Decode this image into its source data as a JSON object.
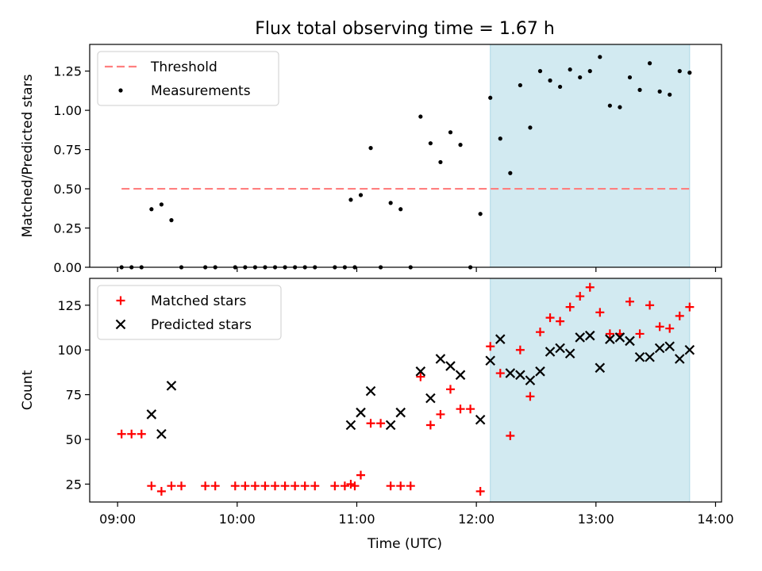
{
  "figure": {
    "title": "Flux total observing time = 1.67 h",
    "xlabel": "Time (UTC)"
  },
  "colors": {
    "threshold": "#ff7f7f",
    "measurement": "#000000",
    "matched": "#ff0000",
    "predicted": "#000000",
    "highlight": "#add8e6"
  },
  "chart_data": [
    {
      "type": "scatter",
      "panel": "top",
      "ylabel": "Matched/Predicted stars",
      "xlim": [
        "08:46",
        "14:03"
      ],
      "ylim": [
        0,
        1.42
      ],
      "yticks": [
        0.0,
        0.25,
        0.5,
        0.75,
        1.0,
        1.25
      ],
      "ytick_labels": [
        "0.00",
        "0.25",
        "0.50",
        "0.75",
        "1.00",
        "1.25"
      ],
      "highlight_span": [
        "12:07",
        "13:47"
      ],
      "threshold": {
        "name": "Threshold",
        "y": 0.5,
        "x_range": [
          "09:02",
          "13:47"
        ],
        "style": "dashed"
      },
      "legend": {
        "position": "top-left",
        "entries": [
          "Threshold",
          "Measurements"
        ]
      },
      "series": [
        {
          "name": "Measurements",
          "marker": "dot",
          "points": [
            [
              "09:02",
              0.0
            ],
            [
              "09:07",
              0.0
            ],
            [
              "09:12",
              0.0
            ],
            [
              "09:17",
              0.37
            ],
            [
              "09:22",
              0.4
            ],
            [
              "09:27",
              0.3
            ],
            [
              "09:32",
              0.0
            ],
            [
              "09:44",
              0.0
            ],
            [
              "09:49",
              0.0
            ],
            [
              "09:59",
              0.0
            ],
            [
              "10:04",
              0.0
            ],
            [
              "10:09",
              0.0
            ],
            [
              "10:14",
              0.0
            ],
            [
              "10:19",
              0.0
            ],
            [
              "10:24",
              0.0
            ],
            [
              "10:29",
              0.0
            ],
            [
              "10:34",
              0.0
            ],
            [
              "10:39",
              0.0
            ],
            [
              "10:49",
              0.0
            ],
            [
              "10:54",
              0.0
            ],
            [
              "10:59",
              0.0
            ],
            [
              "10:57",
              0.43
            ],
            [
              "11:02",
              0.46
            ],
            [
              "11:07",
              0.76
            ],
            [
              "11:12",
              0.0
            ],
            [
              "11:17",
              0.41
            ],
            [
              "11:22",
              0.37
            ],
            [
              "11:27",
              0.0
            ],
            [
              "11:32",
              0.96
            ],
            [
              "11:37",
              0.79
            ],
            [
              "11:42",
              0.67
            ],
            [
              "11:47",
              0.86
            ],
            [
              "11:52",
              0.78
            ],
            [
              "11:57",
              0.0
            ],
            [
              "12:02",
              0.34
            ],
            [
              "12:07",
              1.08
            ],
            [
              "12:12",
              0.82
            ],
            [
              "12:17",
              0.6
            ],
            [
              "12:22",
              1.16
            ],
            [
              "12:27",
              0.89
            ],
            [
              "12:32",
              1.25
            ],
            [
              "12:37",
              1.19
            ],
            [
              "12:42",
              1.15
            ],
            [
              "12:47",
              1.26
            ],
            [
              "12:52",
              1.21
            ],
            [
              "12:57",
              1.25
            ],
            [
              "13:02",
              1.34
            ],
            [
              "13:07",
              1.03
            ],
            [
              "13:12",
              1.02
            ],
            [
              "13:17",
              1.21
            ],
            [
              "13:22",
              1.13
            ],
            [
              "13:27",
              1.3
            ],
            [
              "13:32",
              1.12
            ],
            [
              "13:37",
              1.1
            ],
            [
              "13:42",
              1.25
            ],
            [
              "13:47",
              1.24
            ]
          ]
        }
      ]
    },
    {
      "type": "scatter",
      "panel": "bottom",
      "ylabel": "Count",
      "xlim": [
        "08:46",
        "14:03"
      ],
      "ylim": [
        15,
        140
      ],
      "yticks": [
        25,
        50,
        75,
        100,
        125
      ],
      "ytick_labels": [
        "25",
        "50",
        "75",
        "100",
        "125"
      ],
      "xticks": [
        "09:00",
        "10:00",
        "11:00",
        "12:00",
        "13:00",
        "14:00"
      ],
      "xtick_labels": [
        "09:00",
        "10:00",
        "11:00",
        "12:00",
        "13:00",
        "14:00"
      ],
      "highlight_span": [
        "12:07",
        "13:47"
      ],
      "legend": {
        "position": "top-left",
        "entries": [
          "Matched stars",
          "Predicted stars"
        ]
      },
      "series": [
        {
          "name": "Matched stars",
          "marker": "plus",
          "points": [
            [
              "09:02",
              53
            ],
            [
              "09:07",
              53
            ],
            [
              "09:12",
              53
            ],
            [
              "09:17",
              24
            ],
            [
              "09:22",
              21
            ],
            [
              "09:27",
              24
            ],
            [
              "09:32",
              24
            ],
            [
              "09:44",
              24
            ],
            [
              "09:49",
              24
            ],
            [
              "09:59",
              24
            ],
            [
              "10:04",
              24
            ],
            [
              "10:09",
              24
            ],
            [
              "10:14",
              24
            ],
            [
              "10:19",
              24
            ],
            [
              "10:24",
              24
            ],
            [
              "10:29",
              24
            ],
            [
              "10:34",
              24
            ],
            [
              "10:39",
              24
            ],
            [
              "10:49",
              24
            ],
            [
              "10:54",
              24
            ],
            [
              "10:59",
              24
            ],
            [
              "10:57",
              25
            ],
            [
              "11:02",
              30
            ],
            [
              "11:07",
              59
            ],
            [
              "11:12",
              59
            ],
            [
              "11:17",
              24
            ],
            [
              "11:22",
              24
            ],
            [
              "11:27",
              24
            ],
            [
              "11:32",
              85
            ],
            [
              "11:37",
              58
            ],
            [
              "11:42",
              64
            ],
            [
              "11:47",
              78
            ],
            [
              "11:52",
              67
            ],
            [
              "11:57",
              67
            ],
            [
              "12:02",
              21
            ],
            [
              "12:07",
              102
            ],
            [
              "12:12",
              87
            ],
            [
              "12:17",
              52
            ],
            [
              "12:22",
              100
            ],
            [
              "12:27",
              74
            ],
            [
              "12:32",
              110
            ],
            [
              "12:37",
              118
            ],
            [
              "12:42",
              116
            ],
            [
              "12:47",
              124
            ],
            [
              "12:52",
              130
            ],
            [
              "12:57",
              135
            ],
            [
              "13:02",
              121
            ],
            [
              "13:07",
              109
            ],
            [
              "13:12",
              109
            ],
            [
              "13:17",
              127
            ],
            [
              "13:22",
              109
            ],
            [
              "13:27",
              125
            ],
            [
              "13:32",
              113
            ],
            [
              "13:37",
              112
            ],
            [
              "13:42",
              119
            ],
            [
              "13:47",
              124
            ]
          ]
        },
        {
          "name": "Predicted stars",
          "marker": "x",
          "points": [
            [
              "09:17",
              64
            ],
            [
              "09:22",
              53
            ],
            [
              "09:27",
              80
            ],
            [
              "10:57",
              58
            ],
            [
              "11:02",
              65
            ],
            [
              "11:07",
              77
            ],
            [
              "11:17",
              58
            ],
            [
              "11:22",
              65
            ],
            [
              "11:32",
              88
            ],
            [
              "11:37",
              73
            ],
            [
              "11:42",
              95
            ],
            [
              "11:47",
              91
            ],
            [
              "11:52",
              86
            ],
            [
              "12:02",
              61
            ],
            [
              "12:07",
              94
            ],
            [
              "12:12",
              106
            ],
            [
              "12:17",
              87
            ],
            [
              "12:22",
              86
            ],
            [
              "12:27",
              83
            ],
            [
              "12:32",
              88
            ],
            [
              "12:37",
              99
            ],
            [
              "12:42",
              101
            ],
            [
              "12:47",
              98
            ],
            [
              "12:52",
              107
            ],
            [
              "12:57",
              108
            ],
            [
              "13:02",
              90
            ],
            [
              "13:07",
              106
            ],
            [
              "13:12",
              107
            ],
            [
              "13:17",
              105
            ],
            [
              "13:22",
              96
            ],
            [
              "13:27",
              96
            ],
            [
              "13:32",
              101
            ],
            [
              "13:37",
              102
            ],
            [
              "13:42",
              95
            ],
            [
              "13:47",
              100
            ]
          ]
        }
      ]
    }
  ]
}
